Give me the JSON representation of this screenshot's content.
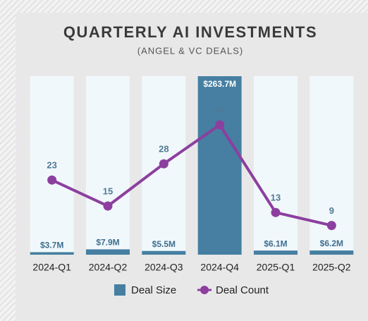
{
  "chart_data": {
    "type": "bar",
    "title": "QUARTERLY AI INVESTMENTS",
    "subtitle": "(ANGEL & VC DEALS)",
    "categories": [
      "2024-Q1",
      "2024-Q2",
      "2024-Q3",
      "2024-Q4",
      "2025-Q1",
      "2025-Q2"
    ],
    "series": [
      {
        "name": "Deal Size",
        "type": "bar",
        "color": "#467fa1",
        "values": [
          3.7,
          7.9,
          5.5,
          263.7,
          6.1,
          6.2
        ],
        "value_labels": [
          "$3.7M",
          "$7.9M",
          "$5.5M",
          "$263.7M",
          "$6.1M",
          "$6.2M"
        ]
      },
      {
        "name": "Deal Count",
        "type": "line",
        "color": "#8c3f9f",
        "axis": "y2",
        "values": [
          23,
          15,
          28,
          40,
          13,
          9
        ]
      }
    ],
    "ylim": [
      0,
      263.7
    ],
    "y2lim": [
      0,
      55
    ],
    "legend": "bottom"
  }
}
